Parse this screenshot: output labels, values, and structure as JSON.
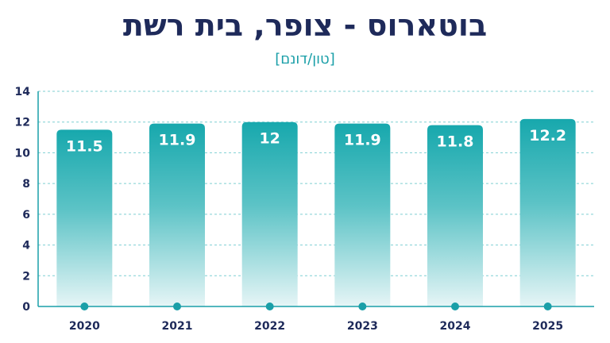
{
  "chart_data": {
    "type": "bar",
    "title": "בוטארוס - צופר, בית רשת",
    "subtitle": "[טון/דונם]",
    "categories": [
      "2020",
      "2021",
      "2022",
      "2023",
      "2024",
      "2025"
    ],
    "values": [
      11.5,
      11.9,
      12,
      11.9,
      11.8,
      12.2
    ],
    "value_labels": [
      "11.5",
      "11.9",
      "12",
      "11.9",
      "11.8",
      "12.2"
    ],
    "yticks": [
      "0",
      "2",
      "4",
      "6",
      "8",
      "10",
      "12",
      "14"
    ],
    "ylim": [
      0,
      14
    ],
    "grid": true,
    "bar_color_top": "#17a8ad",
    "bar_color_bottom": "#e6f5f6",
    "axis_color": "#1a9fa8",
    "text_color": "#1e2a5a"
  }
}
